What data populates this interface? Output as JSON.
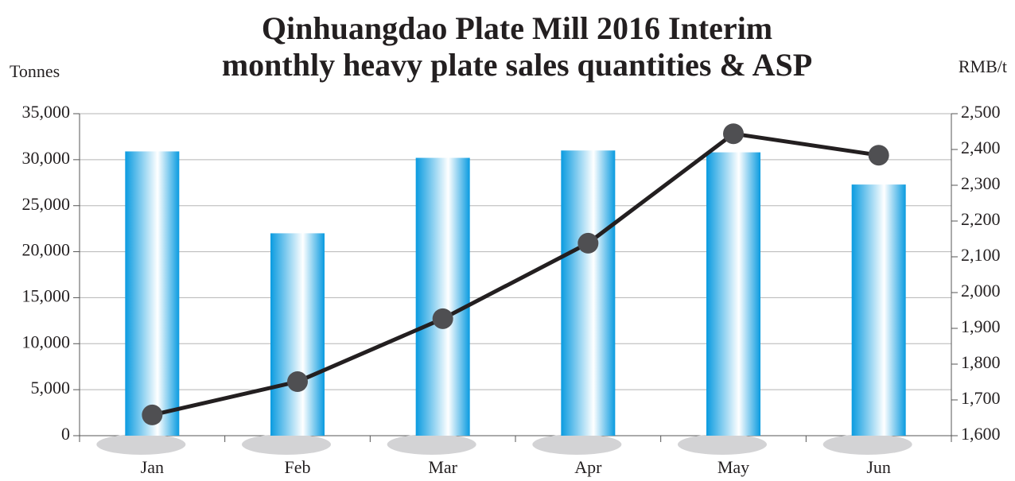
{
  "chart_data": {
    "type": "bar",
    "title": [
      "Qinhuangdao Plate Mill 2016 Interim",
      "monthly heavy plate sales quantities & ASP"
    ],
    "y_label": "Tonnes",
    "y2_label": "RMB/t",
    "categories": [
      "Jan",
      "Feb",
      "Mar",
      "Apr",
      "May",
      "Jun"
    ],
    "series": [
      {
        "type": "bar",
        "color": "#0a9be0",
        "values": [
          30900,
          22000,
          30200,
          31000,
          30800,
          27300
        ]
      },
      {
        "type": "line",
        "axis": "y2",
        "color": "#231f20",
        "marker_color": "#4f4f52",
        "values": [
          1658,
          1751,
          1927,
          2138,
          2444,
          2384
        ]
      }
    ],
    "ylim": [
      0,
      35000
    ],
    "yticks": [
      0,
      {
        "value": 5000,
        "label": "5,000"
      },
      {
        "value": 10000,
        "label": "10,000"
      },
      {
        "value": 15000,
        "label": "15,000"
      },
      {
        "value": 20000,
        "label": "20,000"
      },
      {
        "value": 25000,
        "label": "25,000"
      },
      {
        "value": 30000,
        "label": "30,000"
      },
      {
        "value": 35000,
        "label": "35,000"
      }
    ],
    "y2lim": [
      1600,
      2500
    ],
    "y2ticks": [
      {
        "value": 1600,
        "label": "1,600"
      },
      {
        "value": 1700,
        "label": "1,700"
      },
      {
        "value": 1800,
        "label": "1,800"
      },
      {
        "value": 1900,
        "label": "1,900"
      },
      {
        "value": 2000,
        "label": "2,000"
      },
      {
        "value": 2100,
        "label": "2,100"
      },
      {
        "value": 2200,
        "label": "2,200"
      },
      {
        "value": 2300,
        "label": "2,300"
      },
      {
        "value": 2400,
        "label": "2,400"
      },
      {
        "value": 2500,
        "label": "2,500"
      }
    ],
    "grid": true
  }
}
